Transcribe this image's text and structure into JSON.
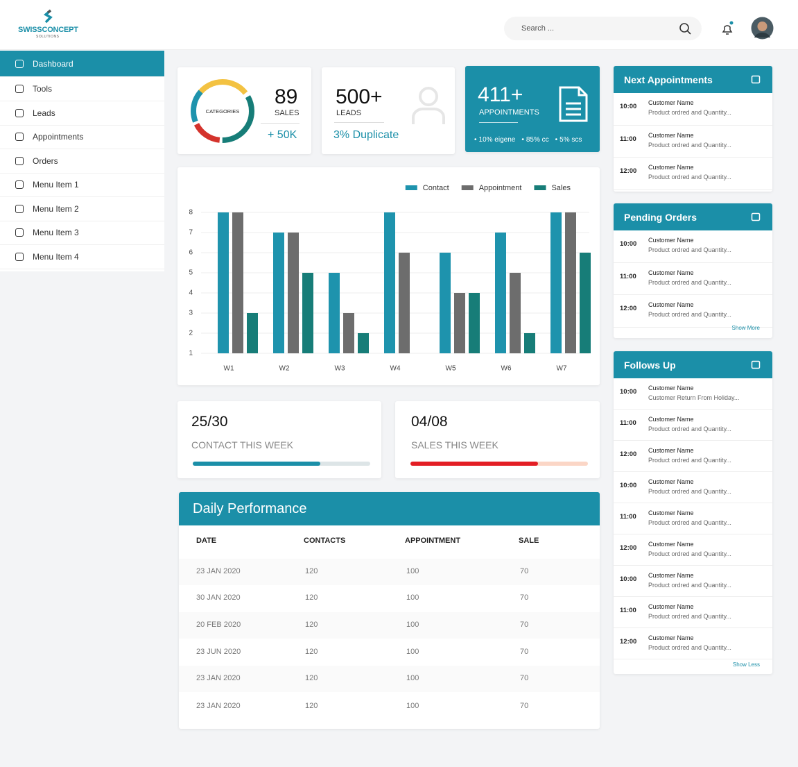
{
  "header": {
    "brand": "SWISSCONCEPT",
    "tagline": "SOLUTIONS",
    "search_placeholder": "Search ..."
  },
  "nav": {
    "items": [
      "Dashboard",
      "Tools",
      "Leads",
      "Appointments",
      "Orders",
      "Menu Item 1",
      "Menu Item 2",
      "Menu Item 3",
      "Menu Item 4"
    ],
    "active": 0
  },
  "cards": {
    "categories": {
      "donut_label": "CATEGORIES",
      "value": 89,
      "label": "SALES",
      "delta": "+ 50K"
    },
    "leads": {
      "value": "500+",
      "label": "LEADS",
      "note": "3% Duplicate"
    },
    "appointments": {
      "value": "411+",
      "label": "APPOINTMENTS",
      "breakdown": [
        "10% eigene",
        "85% cc",
        "5% scs"
      ]
    }
  },
  "chart_data": {
    "type": "bar",
    "categories": [
      "W1",
      "W2",
      "W3",
      "W4",
      "W5",
      "W6",
      "W7"
    ],
    "series": [
      {
        "name": "Contact",
        "color": "#1e93ad",
        "values": [
          8,
          7,
          5,
          8,
          6,
          7,
          8
        ]
      },
      {
        "name": "Appointment",
        "color": "#6d6d6d",
        "values": [
          8,
          7,
          3,
          6,
          4,
          5,
          8
        ]
      },
      {
        "name": "Sales",
        "color": "#177d78",
        "values": [
          3,
          5,
          2,
          null,
          4,
          2,
          6
        ]
      }
    ],
    "ylim": [
      1,
      8
    ],
    "yticks": [
      1,
      2,
      3,
      4,
      5,
      6,
      7,
      8
    ],
    "grid": true,
    "legend": "top-right"
  },
  "weekly": [
    {
      "value": "25/30",
      "label": "CONTACT THIS WEEK",
      "progress": 72,
      "color": "#1b8fa8",
      "track": "#dde5e7"
    },
    {
      "value": "04/08",
      "label": "SALES THIS WEEK",
      "progress": 72,
      "color": "#e31e24",
      "track": "#fbd6c6"
    }
  ],
  "daily_performance": {
    "title": "Daily Performance",
    "columns": [
      "DATE",
      "CONTACTS",
      "APPOINTMENT",
      "SALE"
    ],
    "rows": [
      [
        "23 JAN 2020",
        120,
        100,
        70
      ],
      [
        "30 JAN 2020",
        120,
        100,
        70
      ],
      [
        "20 FEB 2020",
        120,
        100,
        70
      ],
      [
        "23 JUN 2020",
        120,
        100,
        70
      ],
      [
        "23 JAN 2020",
        120,
        100,
        70
      ],
      [
        "23 JAN 2020",
        120,
        100,
        70
      ]
    ]
  },
  "next_appointments": {
    "title": "Next Appointments",
    "items": [
      {
        "time": "10:00",
        "name": "Customer Name",
        "detail": "Product ordred and Quantity..."
      },
      {
        "time": "11:00",
        "name": "Customer Name",
        "detail": "Product ordred and Quantity..."
      },
      {
        "time": "12:00",
        "name": "Customer Name",
        "detail": "Product ordred and Quantity..."
      }
    ]
  },
  "pending_orders": {
    "title": "Pending Orders",
    "toggle": "Show More",
    "items": [
      {
        "time": "10:00",
        "name": "Customer Name",
        "detail": "Product ordred and Quantity..."
      },
      {
        "time": "11:00",
        "name": "Customer Name",
        "detail": "Product ordred and Quantity..."
      },
      {
        "time": "12:00",
        "name": "Customer Name",
        "detail": "Product ordred and Quantity..."
      }
    ]
  },
  "follows_up": {
    "title": "Follows Up",
    "toggle": "Show Less",
    "items": [
      {
        "time": "10:00",
        "name": "Customer Name",
        "detail": "Customer Return From Holiday..."
      },
      {
        "time": "11:00",
        "name": "Customer Name",
        "detail": "Product ordred and Quantity..."
      },
      {
        "time": "12:00",
        "name": "Customer Name",
        "detail": "Product ordred and Quantity..."
      },
      {
        "time": "10:00",
        "name": "Customer Name",
        "detail": "Product ordred and Quantity..."
      },
      {
        "time": "11:00",
        "name": "Customer Name",
        "detail": "Product ordred and Quantity..."
      },
      {
        "time": "12:00",
        "name": "Customer Name",
        "detail": "Product ordred and Quantity..."
      },
      {
        "time": "10:00",
        "name": "Customer Name",
        "detail": "Product ordred and Quantity..."
      },
      {
        "time": "11:00",
        "name": "Customer Name",
        "detail": "Product ordred and Quantity..."
      },
      {
        "time": "12:00",
        "name": "Customer Name",
        "detail": "Product ordred and Quantity..."
      }
    ]
  }
}
